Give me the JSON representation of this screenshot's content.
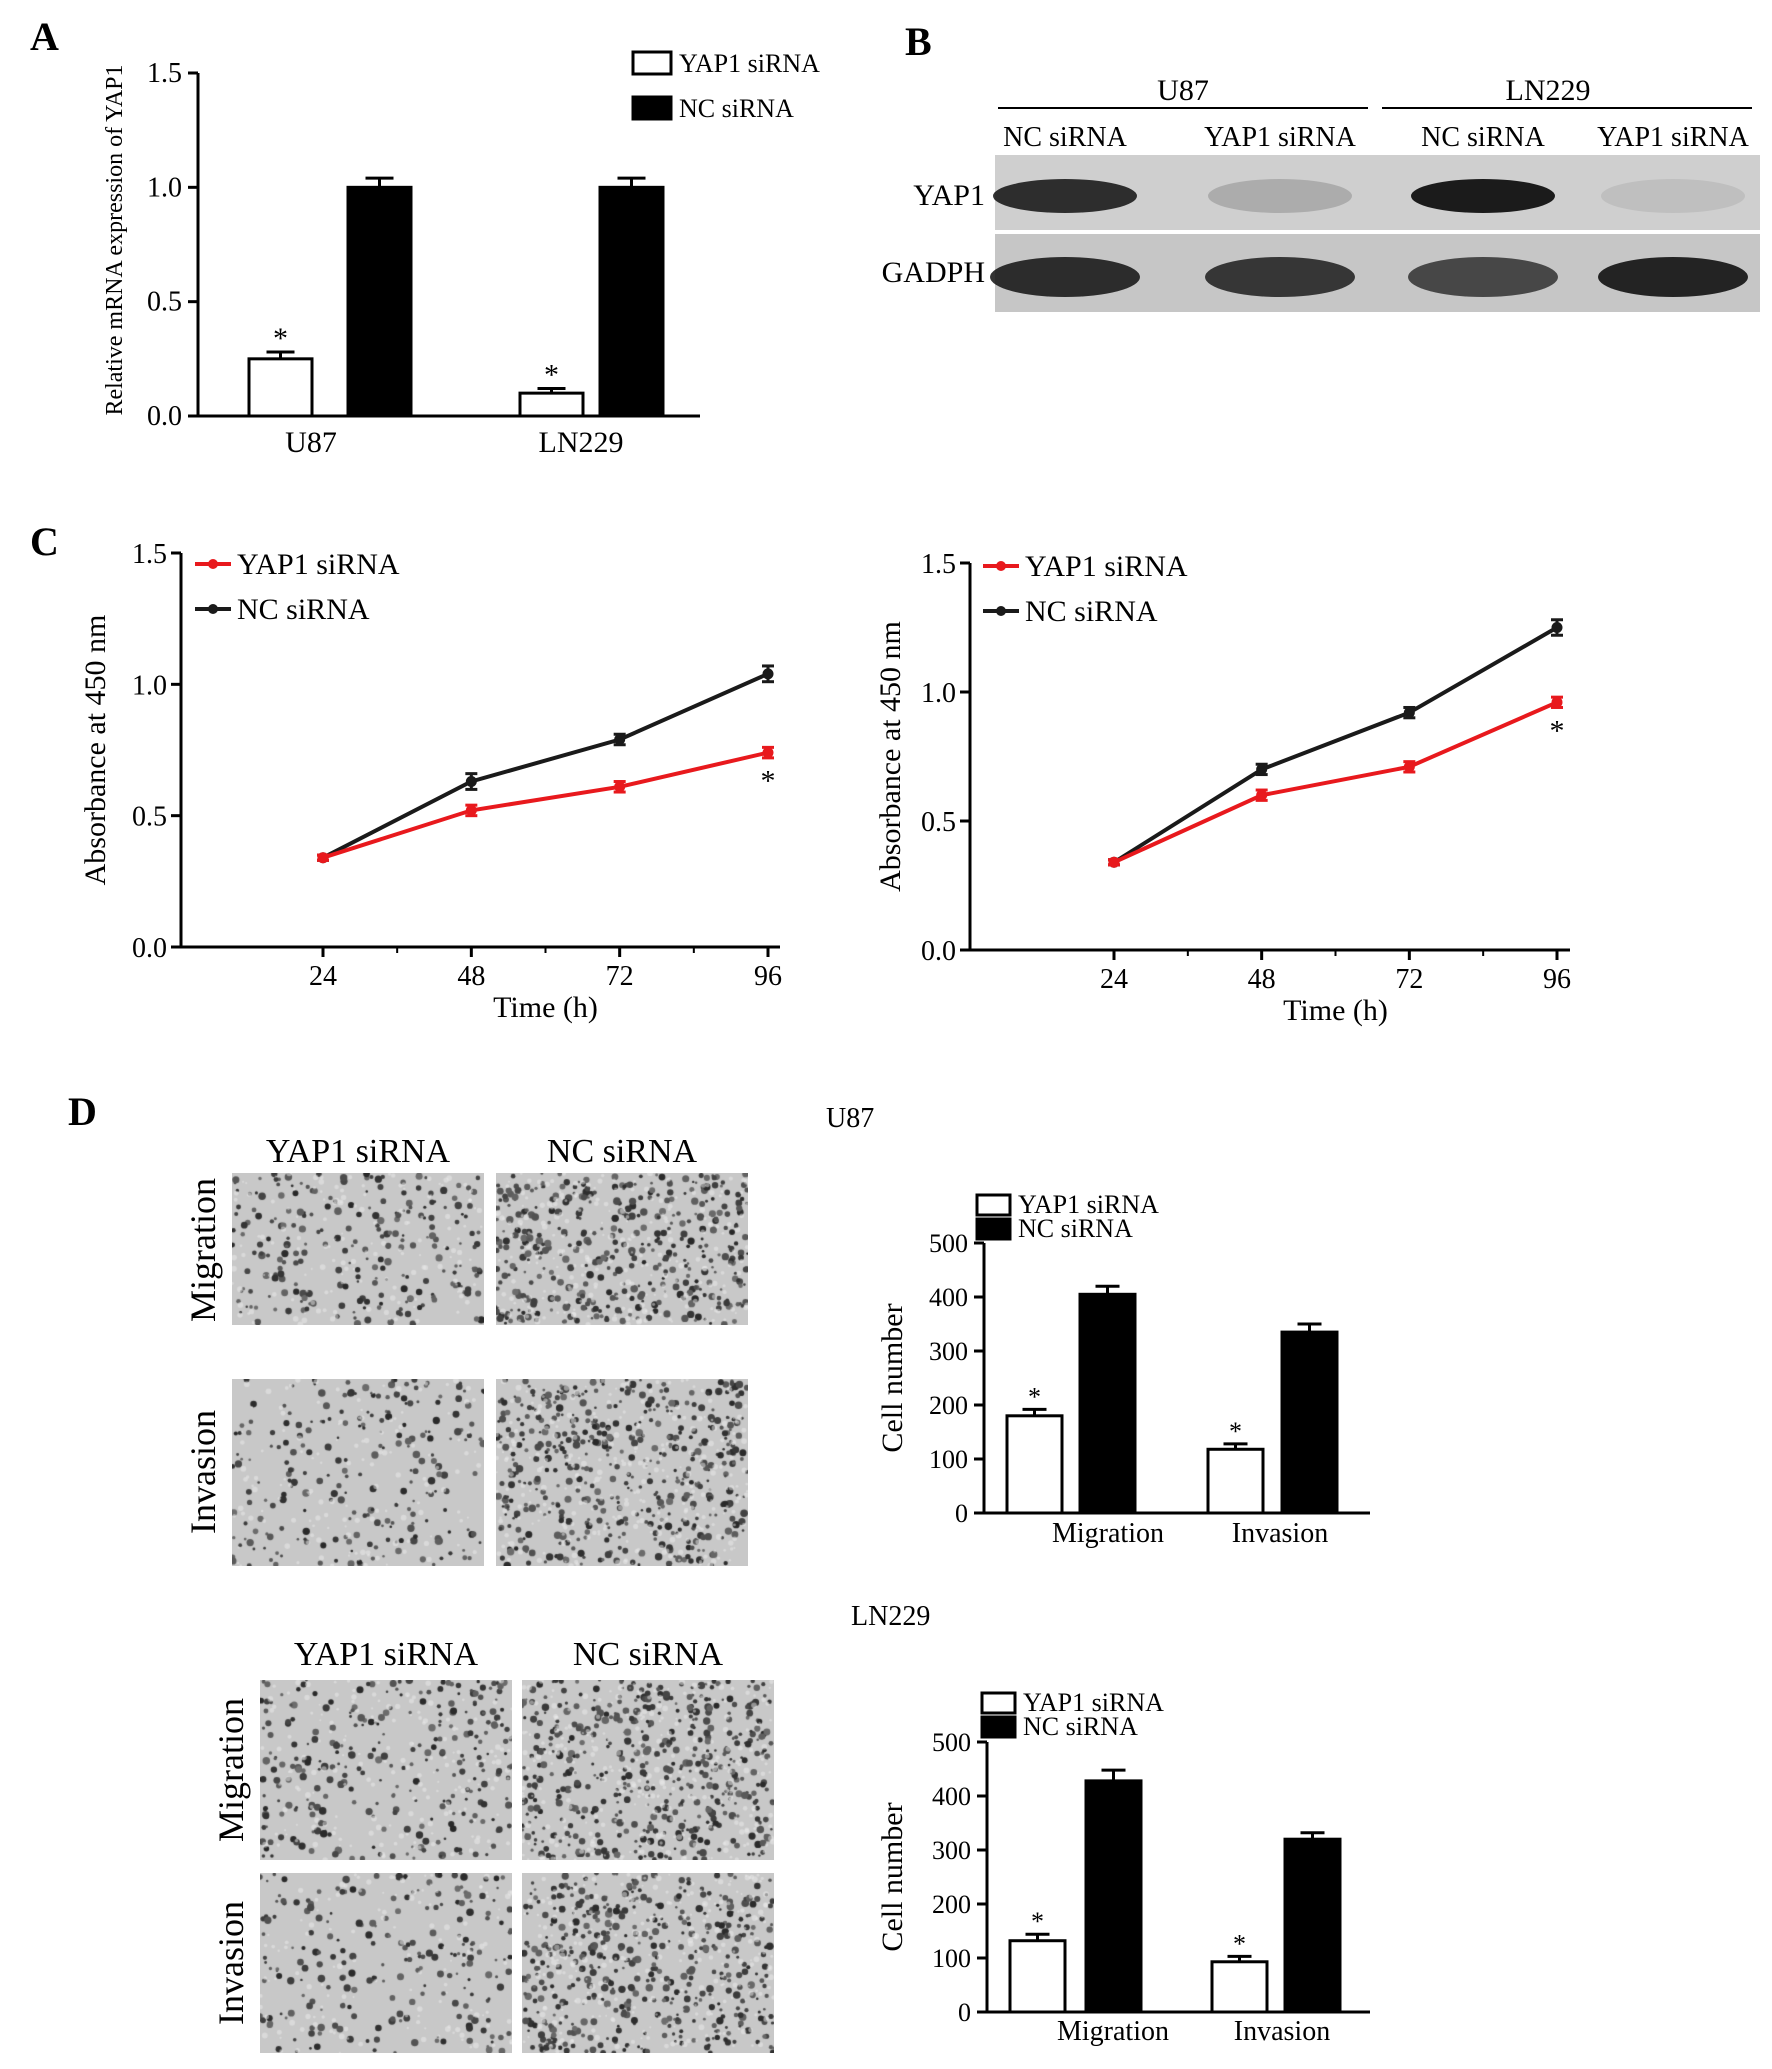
{
  "panels": {
    "A": {
      "letter": "A"
    },
    "B": {
      "letter": "B",
      "groups": [
        "U87",
        "LN229"
      ],
      "lanes": [
        "NC siRNA",
        "YAP1 siRNA",
        "NC siRNA",
        "YAP1 siRNA"
      ],
      "rows": [
        "YAP1",
        "GADPH"
      ],
      "band_intensity": {
        "YAP1": [
          0.85,
          0.18,
          0.95,
          0.08
        ],
        "GADPH": [
          0.85,
          0.8,
          0.7,
          0.9
        ]
      }
    },
    "C": {
      "letter": "C"
    },
    "D": {
      "letter": "D",
      "blocks": [
        {
          "cell_line": "U87",
          "columns": [
            "YAP1 siRNA",
            "NC siRNA"
          ],
          "rows": [
            "Migration",
            "Invasion"
          ]
        },
        {
          "cell_line": "LN229",
          "columns": [
            "YAP1 siRNA",
            "NC siRNA"
          ],
          "rows": [
            "Migration",
            "Invasion"
          ]
        }
      ],
      "density": [
        [
          0.45,
          0.8
        ],
        [
          0.35,
          0.75
        ]
      ]
    }
  },
  "chart_data": [
    {
      "panel": "A",
      "type": "bar",
      "categories": [
        "U87",
        "LN229"
      ],
      "series": [
        {
          "name": "YAP1 siRNA",
          "values": [
            0.25,
            0.1
          ],
          "errors": [
            0.03,
            0.02
          ],
          "color": "#ffffff"
        },
        {
          "name": "NC siRNA",
          "values": [
            1.0,
            1.0
          ],
          "errors": [
            0.04,
            0.04
          ],
          "color": "#000000"
        }
      ],
      "significance": [
        "*",
        "*"
      ],
      "ylabel": "Relative mRNA expression of YAP1",
      "xlabel": "",
      "ylim": [
        0,
        1.5
      ],
      "yticks": [
        "0.0",
        "0.5",
        "1.0",
        "1.5"
      ],
      "legend": "top-right"
    },
    {
      "panel": "C-left",
      "type": "line",
      "x": [
        24,
        48,
        72,
        96
      ],
      "series": [
        {
          "name": "YAP1 siRNA",
          "values": [
            0.34,
            0.52,
            0.61,
            0.74
          ],
          "errors": [
            0.01,
            0.02,
            0.02,
            0.02
          ],
          "color": "#e8191d"
        },
        {
          "name": "NC siRNA",
          "values": [
            0.34,
            0.63,
            0.79,
            1.04
          ],
          "errors": [
            0.01,
            0.03,
            0.02,
            0.03
          ],
          "color": "#1a1a1a"
        }
      ],
      "annotation": "*",
      "xlabel": "Time (h)",
      "ylabel": "Absorbance at 450 nm",
      "ylim": [
        0,
        1.5
      ],
      "yticks": [
        "0.0",
        "0.5",
        "1.0",
        "1.5"
      ],
      "xticks": [
        "24",
        "48",
        "72",
        "96"
      ],
      "legend": "top-left"
    },
    {
      "panel": "C-right",
      "type": "line",
      "x": [
        24,
        48,
        72,
        96
      ],
      "series": [
        {
          "name": "YAP1 siRNA",
          "values": [
            0.34,
            0.6,
            0.71,
            0.96
          ],
          "errors": [
            0.01,
            0.02,
            0.02,
            0.02
          ],
          "color": "#e8191d"
        },
        {
          "name": "NC siRNA",
          "values": [
            0.34,
            0.7,
            0.92,
            1.25
          ],
          "errors": [
            0.01,
            0.02,
            0.02,
            0.03
          ],
          "color": "#1a1a1a"
        }
      ],
      "annotation": "*",
      "xlabel": "Time (h)",
      "ylabel": "Absorbance at 450 nm",
      "ylim": [
        0,
        1.5
      ],
      "yticks": [
        "0.0",
        "0.5",
        "1.0",
        "1.5"
      ],
      "xticks": [
        "24",
        "48",
        "72",
        "96"
      ],
      "legend": "top-left"
    },
    {
      "panel": "D-U87",
      "type": "bar",
      "title": "U87",
      "categories": [
        "Migration",
        "Invasion"
      ],
      "series": [
        {
          "name": "YAP1 siRNA",
          "values": [
            180,
            118
          ],
          "errors": [
            12,
            10
          ],
          "color": "#ffffff"
        },
        {
          "name": "NC siRNA",
          "values": [
            405,
            335
          ],
          "errors": [
            15,
            15
          ],
          "color": "#000000"
        }
      ],
      "significance": [
        "*",
        "*"
      ],
      "ylabel": "Cell number",
      "ylim": [
        0,
        500
      ],
      "yticks": [
        "0",
        "100",
        "200",
        "300",
        "400",
        "500"
      ],
      "legend": "top-left"
    },
    {
      "panel": "D-LN229",
      "type": "bar",
      "title": "LN229",
      "categories": [
        "Migration",
        "Invasion"
      ],
      "series": [
        {
          "name": "YAP1 siRNA",
          "values": [
            132,
            93
          ],
          "errors": [
            12,
            10
          ],
          "color": "#ffffff"
        },
        {
          "name": "NC siRNA",
          "values": [
            428,
            320
          ],
          "errors": [
            20,
            12
          ],
          "color": "#000000"
        }
      ],
      "significance": [
        "*",
        "*"
      ],
      "ylabel": "Cell number",
      "ylim": [
        0,
        500
      ],
      "yticks": [
        "0",
        "100",
        "200",
        "300",
        "400",
        "500"
      ],
      "legend": "top-left"
    }
  ]
}
